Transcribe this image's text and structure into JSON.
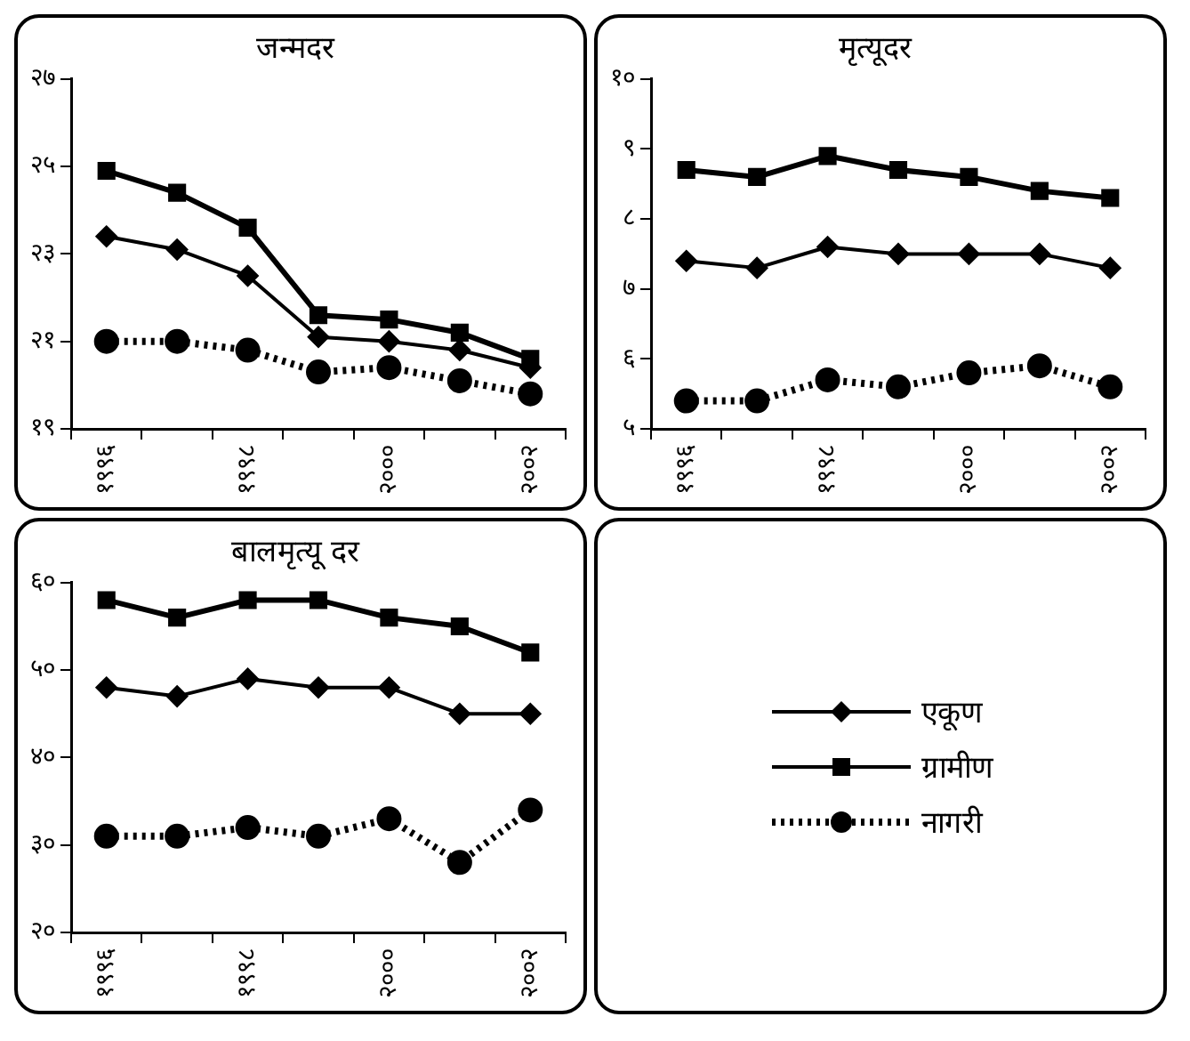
{
  "chart_data": [
    {
      "type": "line",
      "title": "जन्मदर",
      "categories": [
        "१९९६",
        null,
        "१९९८",
        null,
        "२०००",
        null,
        "२००२"
      ],
      "ylim": [
        19,
        27
      ],
      "yticks": [
        {
          "value": 19,
          "label": "१९"
        },
        {
          "value": 21,
          "label": "२१"
        },
        {
          "value": 23,
          "label": "२३"
        },
        {
          "value": 25,
          "label": "२५"
        },
        {
          "value": 27,
          "label": "२७"
        }
      ],
      "grid": false,
      "series": [
        {
          "color": "#000000",
          "marker": "diamond",
          "line_style": "solid",
          "values": [
            23.4,
            23.1,
            22.5,
            21.1,
            21.0,
            20.8,
            20.4
          ]
        },
        {
          "color": "#000000",
          "marker": "square",
          "line_style": "solid",
          "values": [
            24.9,
            24.4,
            23.6,
            21.6,
            21.5,
            21.2,
            20.6
          ]
        },
        {
          "color": "#000000",
          "marker": "circle",
          "line_style": "dotted",
          "values": [
            21.0,
            21.0,
            20.8,
            20.3,
            20.4,
            20.1,
            19.8
          ]
        }
      ]
    },
    {
      "type": "line",
      "title": "मृत्यूदर",
      "categories": [
        "१९९६",
        null,
        "१९९८",
        null,
        "२०००",
        null,
        "२००२"
      ],
      "ylim": [
        5,
        10
      ],
      "yticks": [
        {
          "value": 5,
          "label": "५"
        },
        {
          "value": 6,
          "label": "६"
        },
        {
          "value": 7,
          "label": "७"
        },
        {
          "value": 8,
          "label": "८"
        },
        {
          "value": 9,
          "label": "९"
        },
        {
          "value": 10,
          "label": "१०"
        }
      ],
      "grid": false,
      "series": [
        {
          "color": "#000000",
          "marker": "diamond",
          "line_style": "solid",
          "values": [
            7.4,
            7.3,
            7.6,
            7.5,
            7.5,
            7.5,
            7.3
          ]
        },
        {
          "color": "#000000",
          "marker": "square",
          "line_style": "solid",
          "values": [
            8.7,
            8.6,
            8.9,
            8.7,
            8.6,
            8.4,
            8.3
          ]
        },
        {
          "color": "#000000",
          "marker": "circle",
          "line_style": "dotted",
          "values": [
            5.4,
            5.4,
            5.7,
            5.6,
            5.8,
            5.9,
            5.6
          ]
        }
      ]
    },
    {
      "type": "line",
      "title": "बालमृत्यू दर",
      "categories": [
        "१९९६",
        null,
        "१९९८",
        null,
        "२०००",
        null,
        "२००२"
      ],
      "ylim": [
        20,
        60
      ],
      "yticks": [
        {
          "value": 20,
          "label": "२०"
        },
        {
          "value": 30,
          "label": "३०"
        },
        {
          "value": 40,
          "label": "४०"
        },
        {
          "value": 50,
          "label": "५०"
        },
        {
          "value": 60,
          "label": "६०"
        }
      ],
      "grid": false,
      "legend": "right",
      "series": [
        {
          "name": "एकूण",
          "color": "#000000",
          "marker": "diamond",
          "line_style": "solid",
          "values": [
            48,
            47,
            49,
            48,
            48,
            45,
            45
          ]
        },
        {
          "name": "ग्रामीण",
          "color": "#000000",
          "marker": "square",
          "line_style": "solid",
          "values": [
            58,
            56,
            58,
            58,
            56,
            55,
            52
          ]
        },
        {
          "name": "नागरी",
          "color": "#000000",
          "marker": "circle",
          "line_style": "dotted",
          "values": [
            31,
            31,
            32,
            31,
            33,
            28,
            34
          ]
        }
      ]
    }
  ]
}
